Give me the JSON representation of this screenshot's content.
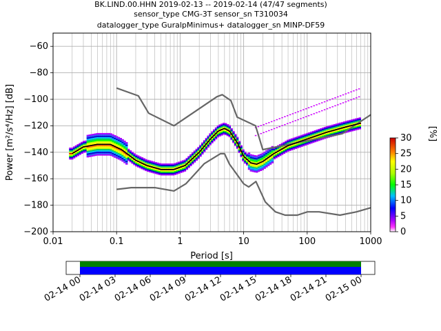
{
  "title_lines": [
    "BK.LIND.00.HHN   2019-02-13 -- 2019-02-14  (47/47 segments)",
    "sensor_type CMG-3T sensor_sn T310034",
    "datalogger_type GuralpMinimus+ datalogger_sn MINP-DF59"
  ],
  "colors": {
    "model_curve": "#666666",
    "mode_line": "#000000",
    "coverage_top": "#008000",
    "coverage_bottom": "#0000ff",
    "grid": "#b0b0b0"
  },
  "colorbar": {
    "label": "[%]",
    "ticks": [
      "0",
      "5",
      "10",
      "15",
      "20",
      "25",
      "30"
    ],
    "min": 0,
    "max": 30
  },
  "timeline": {
    "ticks": [
      "02-14 00",
      "02-14 03",
      "02-14 06",
      "02-14 09",
      "02-14 12",
      "02-14 15",
      "02-14 18",
      "02-14 21",
      "02-15 00"
    ]
  },
  "chart_data": {
    "type": "heatmap",
    "xlabel": "Period [s]",
    "ylabel": "Power [m²/s⁴/Hz] [dB]",
    "x_scale": "log",
    "xlim": [
      0.01,
      1000
    ],
    "ylim": [
      -200,
      -50
    ],
    "x_tick_labels": [
      "0.01",
      "0.1",
      "1",
      "10",
      "100",
      "1000"
    ],
    "y_tick_labels": [
      "−200",
      "−180",
      "−160",
      "−140",
      "−120",
      "−100",
      "−80",
      "−60"
    ],
    "grid": true,
    "high_noise_model": {
      "x": [
        0.1,
        0.22,
        0.32,
        0.8,
        3.8,
        4.6,
        6.3,
        7.9,
        15.4,
        20,
        354.8,
        10000
      ],
      "y": [
        -91.5,
        -97.4,
        -110.5,
        -120,
        -98,
        -96.5,
        -101,
        -113.5,
        -120,
        -138,
        -126,
        -80
      ]
    },
    "low_noise_model": {
      "x": [
        0.1,
        0.17,
        0.4,
        0.8,
        1.24,
        2.4,
        4.3,
        5.0,
        6.0,
        10.0,
        12.0,
        15.6,
        21.9,
        31.6,
        45.0,
        70.0,
        101.0,
        154.0,
        328.0,
        600.0,
        10000
      ],
      "y": [
        -168,
        -166.7,
        -166.7,
        -169.2,
        -163.7,
        -148.6,
        -141.1,
        -141.1,
        -149,
        -163.8,
        -166.2,
        -162.1,
        -177.5,
        -185,
        -187.5,
        -187.5,
        -185,
        -185,
        -187.5,
        -185,
        -168
      ]
    },
    "mode": {
      "x": [
        0.02,
        0.03,
        0.05,
        0.08,
        0.12,
        0.2,
        0.3,
        0.5,
        0.8,
        1.2,
        2,
        3,
        4,
        5,
        6,
        8,
        10,
        13,
        16,
        20,
        30,
        50,
        100,
        200,
        400,
        700
      ],
      "y": [
        -141,
        -136,
        -134,
        -134,
        -138,
        -146,
        -150,
        -153,
        -153,
        -150,
        -140,
        -130,
        -124,
        -122,
        -124,
        -133,
        -143,
        -148,
        -149,
        -147,
        -141,
        -135,
        -130,
        -125,
        -121,
        -118
      ]
    }
  }
}
